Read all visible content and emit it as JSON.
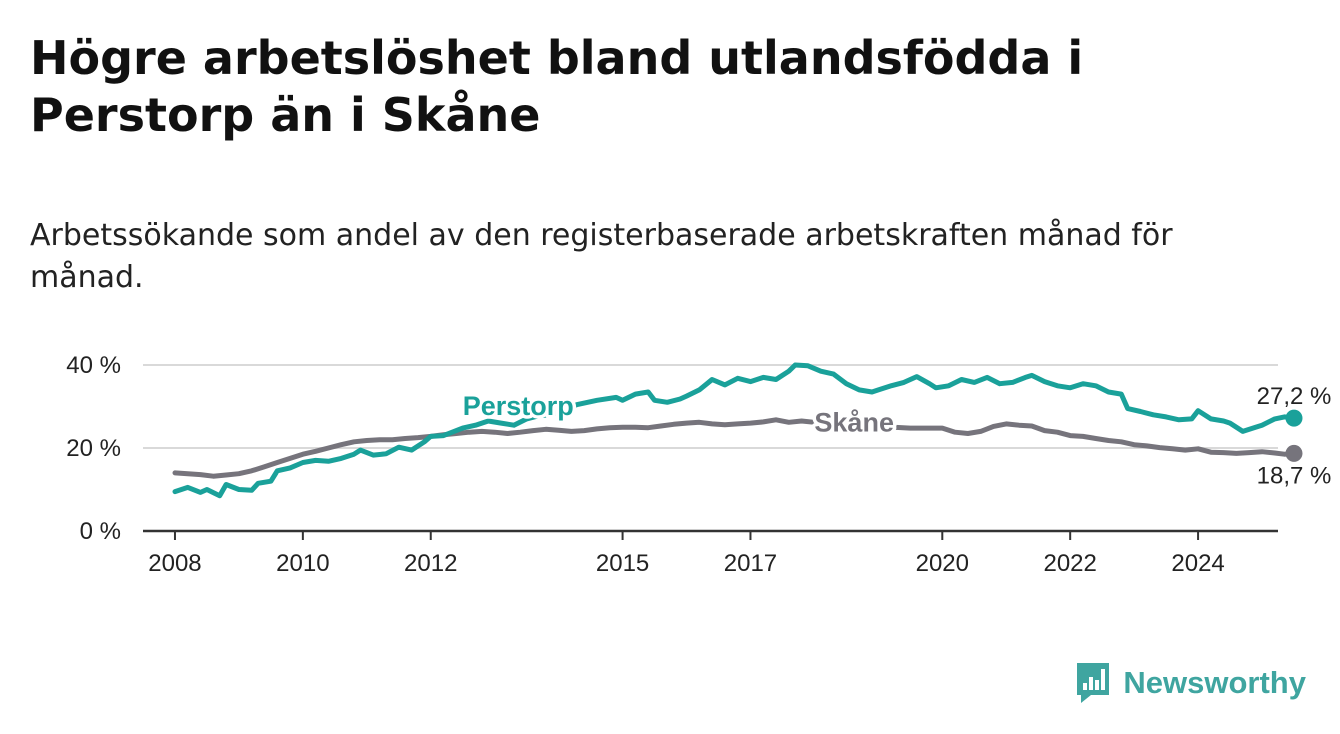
{
  "title": "Högre arbetslöshet bland utlandsfödda i Perstorp än i Skåne",
  "subtitle": "Arbetssökande som andel av den registerbaserade arbetskraften månad för månad.",
  "brand": {
    "name": "Newsworthy",
    "color": "#3fa5a0"
  },
  "chart_data": {
    "type": "line",
    "title": "Högre arbetslöshet bland utlandsfödda i Perstorp än i Skåne",
    "xlabel": "",
    "ylabel": "",
    "xlim": [
      2007.5,
      2025.25
    ],
    "ylim": [
      0,
      40
    ],
    "x_ticks": [
      2008,
      2010,
      2012,
      2015,
      2017,
      2020,
      2022,
      2024
    ],
    "y_ticks": [
      {
        "value": 0,
        "label": "0 %"
      },
      {
        "value": 20,
        "label": "20 %"
      },
      {
        "value": 40,
        "label": "40 %"
      }
    ],
    "grid": true,
    "series": [
      {
        "name": "Perstorp",
        "color": "#1aa19a",
        "label": "Perstorp",
        "label_at": [
          2012.5,
          28
        ],
        "end_label": "27,2 %",
        "points": [
          [
            2008.0,
            9.5
          ],
          [
            2008.2,
            10.5
          ],
          [
            2008.4,
            9.3
          ],
          [
            2008.5,
            10.0
          ],
          [
            2008.7,
            8.5
          ],
          [
            2008.8,
            11.2
          ],
          [
            2009.0,
            10.0
          ],
          [
            2009.2,
            9.8
          ],
          [
            2009.3,
            11.5
          ],
          [
            2009.5,
            12.0
          ],
          [
            2009.6,
            14.5
          ],
          [
            2009.8,
            15.2
          ],
          [
            2010.0,
            16.5
          ],
          [
            2010.2,
            17.0
          ],
          [
            2010.4,
            16.8
          ],
          [
            2010.6,
            17.5
          ],
          [
            2010.8,
            18.5
          ],
          [
            2010.9,
            19.5
          ],
          [
            2011.1,
            18.3
          ],
          [
            2011.3,
            18.6
          ],
          [
            2011.5,
            20.2
          ],
          [
            2011.7,
            19.5
          ],
          [
            2011.9,
            21.5
          ],
          [
            2012.0,
            22.8
          ],
          [
            2012.2,
            23.0
          ],
          [
            2012.4,
            24.2
          ],
          [
            2012.5,
            24.8
          ],
          [
            2012.7,
            25.5
          ],
          [
            2012.9,
            26.5
          ],
          [
            2013.1,
            26.0
          ],
          [
            2013.3,
            25.5
          ],
          [
            2013.5,
            27.0
          ],
          [
            2013.7,
            27.8
          ],
          [
            2013.9,
            28.0
          ],
          [
            2014.1,
            29.5
          ],
          [
            2014.3,
            30.5
          ],
          [
            2014.6,
            31.5
          ],
          [
            2014.9,
            32.2
          ],
          [
            2015.0,
            31.5
          ],
          [
            2015.2,
            33.0
          ],
          [
            2015.4,
            33.5
          ],
          [
            2015.5,
            31.5
          ],
          [
            2015.7,
            31.0
          ],
          [
            2015.9,
            31.8
          ],
          [
            2016.0,
            32.5
          ],
          [
            2016.2,
            34.0
          ],
          [
            2016.4,
            36.5
          ],
          [
            2016.6,
            35.2
          ],
          [
            2016.8,
            36.8
          ],
          [
            2017.0,
            36.0
          ],
          [
            2017.2,
            37.0
          ],
          [
            2017.4,
            36.5
          ],
          [
            2017.6,
            38.5
          ],
          [
            2017.7,
            40.0
          ],
          [
            2017.9,
            39.8
          ],
          [
            2018.1,
            38.5
          ],
          [
            2018.3,
            37.8
          ],
          [
            2018.5,
            35.5
          ],
          [
            2018.7,
            34.0
          ],
          [
            2018.9,
            33.5
          ],
          [
            2019.0,
            34.0
          ],
          [
            2019.2,
            35.0
          ],
          [
            2019.4,
            35.8
          ],
          [
            2019.6,
            37.2
          ],
          [
            2019.8,
            35.5
          ],
          [
            2019.9,
            34.5
          ],
          [
            2020.1,
            35.0
          ],
          [
            2020.3,
            36.5
          ],
          [
            2020.5,
            35.8
          ],
          [
            2020.7,
            37.0
          ],
          [
            2020.9,
            35.5
          ],
          [
            2021.1,
            35.8
          ],
          [
            2021.3,
            37.0
          ],
          [
            2021.4,
            37.5
          ],
          [
            2021.6,
            36.0
          ],
          [
            2021.8,
            35.0
          ],
          [
            2022.0,
            34.5
          ],
          [
            2022.2,
            35.5
          ],
          [
            2022.4,
            35.0
          ],
          [
            2022.6,
            33.5
          ],
          [
            2022.8,
            33.0
          ],
          [
            2022.9,
            29.5
          ],
          [
            2023.1,
            28.8
          ],
          [
            2023.3,
            28.0
          ],
          [
            2023.5,
            27.5
          ],
          [
            2023.7,
            26.8
          ],
          [
            2023.9,
            27.0
          ],
          [
            2024.0,
            29.0
          ],
          [
            2024.2,
            27.0
          ],
          [
            2024.4,
            26.5
          ],
          [
            2024.5,
            26.0
          ],
          [
            2024.7,
            24.0
          ],
          [
            2024.9,
            25.0
          ],
          [
            2025.0,
            25.5
          ],
          [
            2025.2,
            27.0
          ],
          [
            2025.35,
            27.5
          ],
          [
            2025.5,
            27.2
          ]
        ]
      },
      {
        "name": "Skåne",
        "color": "#76747c",
        "label": "Skåne",
        "label_at": [
          2018.0,
          24
        ],
        "end_label": "18,7 %",
        "points": [
          [
            2008.0,
            14.0
          ],
          [
            2008.2,
            13.8
          ],
          [
            2008.4,
            13.6
          ],
          [
            2008.6,
            13.2
          ],
          [
            2008.8,
            13.5
          ],
          [
            2009.0,
            13.8
          ],
          [
            2009.2,
            14.5
          ],
          [
            2009.4,
            15.5
          ],
          [
            2009.6,
            16.5
          ],
          [
            2009.8,
            17.5
          ],
          [
            2010.0,
            18.5
          ],
          [
            2010.2,
            19.2
          ],
          [
            2010.4,
            20.0
          ],
          [
            2010.6,
            20.8
          ],
          [
            2010.8,
            21.5
          ],
          [
            2011.0,
            21.8
          ],
          [
            2011.2,
            22.0
          ],
          [
            2011.4,
            22.0
          ],
          [
            2011.6,
            22.3
          ],
          [
            2011.8,
            22.5
          ],
          [
            2012.0,
            22.8
          ],
          [
            2012.2,
            23.2
          ],
          [
            2012.4,
            23.5
          ],
          [
            2012.6,
            23.8
          ],
          [
            2012.8,
            24.0
          ],
          [
            2013.0,
            23.8
          ],
          [
            2013.2,
            23.5
          ],
          [
            2013.4,
            23.8
          ],
          [
            2013.6,
            24.2
          ],
          [
            2013.8,
            24.5
          ],
          [
            2014.0,
            24.3
          ],
          [
            2014.2,
            24.0
          ],
          [
            2014.4,
            24.2
          ],
          [
            2014.6,
            24.6
          ],
          [
            2014.8,
            24.9
          ],
          [
            2015.0,
            25.0
          ],
          [
            2015.2,
            25.0
          ],
          [
            2015.4,
            24.9
          ],
          [
            2015.6,
            25.3
          ],
          [
            2015.8,
            25.7
          ],
          [
            2016.0,
            26.0
          ],
          [
            2016.2,
            26.2
          ],
          [
            2016.4,
            25.8
          ],
          [
            2016.6,
            25.6
          ],
          [
            2016.8,
            25.8
          ],
          [
            2017.0,
            26.0
          ],
          [
            2017.2,
            26.3
          ],
          [
            2017.4,
            26.8
          ],
          [
            2017.6,
            26.2
          ],
          [
            2017.8,
            26.5
          ],
          [
            2018.0,
            26.2
          ],
          [
            2018.2,
            26.3
          ],
          [
            2018.4,
            26.6
          ],
          [
            2018.6,
            26.8
          ],
          [
            2018.7,
            25.8
          ],
          [
            2018.9,
            25.5
          ],
          [
            2019.0,
            25.2
          ],
          [
            2019.5,
            24.8
          ],
          [
            2020.0,
            24.8
          ],
          [
            2020.2,
            23.8
          ],
          [
            2020.4,
            23.5
          ],
          [
            2020.6,
            24.0
          ],
          [
            2020.8,
            25.2
          ],
          [
            2021.0,
            25.8
          ],
          [
            2021.2,
            25.5
          ],
          [
            2021.4,
            25.3
          ],
          [
            2021.6,
            24.2
          ],
          [
            2021.8,
            23.8
          ],
          [
            2022.0,
            23.0
          ],
          [
            2022.2,
            22.8
          ],
          [
            2022.4,
            22.3
          ],
          [
            2022.6,
            21.8
          ],
          [
            2022.8,
            21.5
          ],
          [
            2023.0,
            20.8
          ],
          [
            2023.2,
            20.5
          ],
          [
            2023.4,
            20.1
          ],
          [
            2023.6,
            19.8
          ],
          [
            2023.8,
            19.5
          ],
          [
            2024.0,
            19.8
          ],
          [
            2024.2,
            19.0
          ],
          [
            2024.4,
            18.9
          ],
          [
            2024.6,
            18.7
          ],
          [
            2024.8,
            18.9
          ],
          [
            2025.0,
            19.1
          ],
          [
            2025.2,
            18.8
          ],
          [
            2025.35,
            18.5
          ],
          [
            2025.5,
            18.7
          ]
        ]
      }
    ]
  }
}
